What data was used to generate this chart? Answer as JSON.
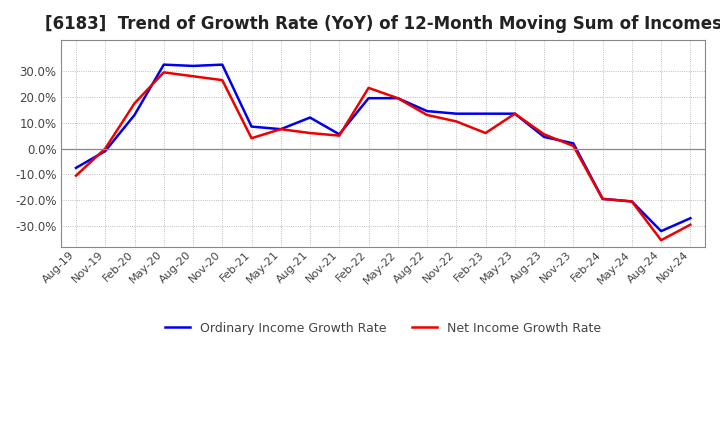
{
  "title": "[6183]  Trend of Growth Rate (YoY) of 12-Month Moving Sum of Incomes",
  "title_fontsize": 12,
  "ylim": [
    -0.38,
    0.42
  ],
  "yticks": [
    -0.3,
    -0.2,
    -0.1,
    0.0,
    0.1,
    0.2,
    0.3
  ],
  "background_color": "#ffffff",
  "grid_color": "#aaaaaa",
  "ordinary_color": "#0000ee",
  "net_color": "#ee0000",
  "x_labels": [
    "Aug-19",
    "Nov-19",
    "Feb-20",
    "May-20",
    "Aug-20",
    "Nov-20",
    "Feb-21",
    "May-21",
    "Aug-21",
    "Nov-21",
    "Feb-22",
    "May-22",
    "Aug-22",
    "Nov-22",
    "Feb-23",
    "May-23",
    "Aug-23",
    "Nov-23",
    "Feb-24",
    "May-24",
    "Aug-24",
    "Nov-24"
  ],
  "ordinary_income_growth": [
    -0.075,
    -0.01,
    0.13,
    0.325,
    0.32,
    0.325,
    0.085,
    0.075,
    0.12,
    0.055,
    0.195,
    0.195,
    0.145,
    0.135,
    0.135,
    0.135,
    0.045,
    0.02,
    -0.195,
    -0.205,
    -0.32,
    -0.27
  ],
  "net_income_growth": [
    -0.105,
    0.0,
    0.175,
    0.295,
    0.28,
    0.265,
    0.04,
    0.075,
    0.06,
    0.05,
    0.235,
    0.195,
    0.13,
    0.105,
    0.06,
    0.135,
    0.055,
    0.01,
    -0.195,
    -0.205,
    -0.355,
    -0.295
  ],
  "legend_ordinary": "Ordinary Income Growth Rate",
  "legend_net": "Net Income Growth Rate"
}
